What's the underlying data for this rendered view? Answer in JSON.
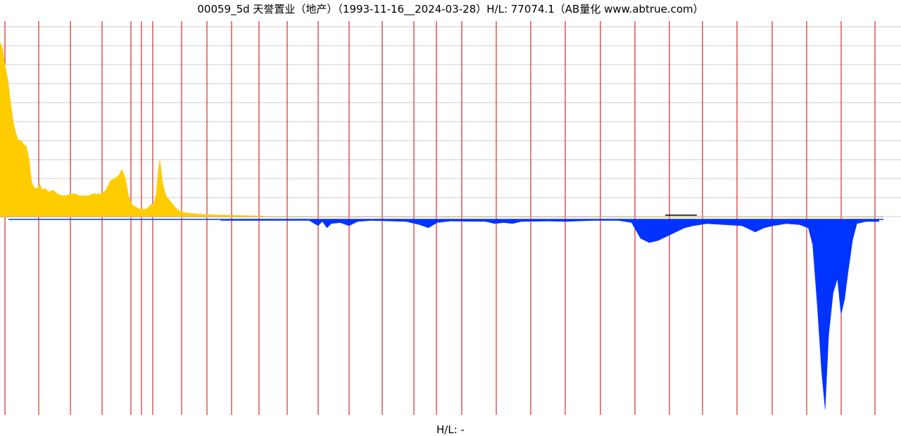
{
  "title": "00059_5d 天誉置业（地产）（1993-11-16__2024-03-28）H/L: 77074.1（AB量化  www.abtrue.com）",
  "bottom_label": "H/L: -",
  "colors": {
    "positive_fill": "#ffcc00",
    "negative_fill": "#0033ff",
    "vertical_lines": "#cc0000",
    "grid": "#cccccc",
    "baseline": "#c8b48c",
    "marker": "#000000"
  },
  "chart_data": {
    "type": "area",
    "title": "",
    "xlabel": "",
    "ylabel": "",
    "x_domain": [
      "1993-11-16",
      "2024-03-28"
    ],
    "ylim_upper": [
      0,
      100
    ],
    "ylim_lower": [
      -100,
      0
    ],
    "grid": true,
    "upper_grid_count": 10,
    "vertical_marker_count": 26,
    "series": [
      {
        "values": [
          [
            0.0,
            92
          ],
          [
            0.3,
            88
          ],
          [
            0.6,
            79
          ],
          [
            0.9,
            72
          ],
          [
            1.2,
            60
          ],
          [
            1.5,
            50
          ],
          [
            1.8,
            44
          ],
          [
            2.1,
            40
          ],
          [
            2.4,
            40
          ],
          [
            2.7,
            38
          ],
          [
            3.0,
            37
          ],
          [
            3.3,
            30
          ],
          [
            3.6,
            18
          ],
          [
            3.9,
            15
          ],
          [
            4.2,
            15
          ],
          [
            4.5,
            17
          ],
          [
            4.8,
            14
          ],
          [
            5.1,
            15
          ],
          [
            5.5,
            13
          ],
          [
            6.0,
            14
          ],
          [
            6.5,
            12
          ],
          [
            7.0,
            11
          ],
          [
            7.5,
            11
          ],
          [
            8.0,
            12
          ],
          [
            8.5,
            12
          ],
          [
            9.0,
            11
          ],
          [
            9.5,
            11
          ],
          [
            10.0,
            11
          ],
          [
            10.5,
            12
          ],
          [
            11.0,
            12
          ],
          [
            11.5,
            12
          ],
          [
            12.0,
            14
          ],
          [
            12.5,
            19
          ],
          [
            13.0,
            20
          ],
          [
            13.5,
            22
          ],
          [
            13.8,
            25
          ],
          [
            14.2,
            20
          ],
          [
            14.6,
            10
          ],
          [
            15.0,
            6
          ],
          [
            15.4,
            5
          ],
          [
            15.8,
            4
          ],
          [
            16.2,
            4
          ],
          [
            16.6,
            4
          ],
          [
            17.0,
            6
          ],
          [
            17.4,
            7
          ],
          [
            17.7,
            12
          ],
          [
            17.9,
            24
          ],
          [
            18.1,
            30
          ],
          [
            18.4,
            18
          ],
          [
            18.8,
            11
          ],
          [
            19.3,
            8
          ],
          [
            19.8,
            5
          ],
          [
            20.3,
            3
          ],
          [
            21.0,
            2
          ],
          [
            22.0,
            1.5
          ],
          [
            23.0,
            1.2
          ],
          [
            24.0,
            1
          ],
          [
            25.0,
            0.8
          ],
          [
            30.0,
            0.3
          ]
        ]
      },
      {
        "values": [
          [
            25.0,
            -0.5
          ],
          [
            30.0,
            -0.5
          ],
          [
            35.0,
            -0.5
          ],
          [
            36.0,
            -3
          ],
          [
            36.5,
            -1
          ],
          [
            37.0,
            -4
          ],
          [
            37.5,
            -2
          ],
          [
            38.5,
            -1.5
          ],
          [
            39.5,
            -3
          ],
          [
            40.5,
            -1
          ],
          [
            42.0,
            -0.5
          ],
          [
            46.0,
            -1
          ],
          [
            47.5,
            -2.5
          ],
          [
            48.5,
            -4
          ],
          [
            49.5,
            -1.5
          ],
          [
            51.0,
            -0.8
          ],
          [
            55.0,
            -1
          ],
          [
            56.0,
            -2
          ],
          [
            57.0,
            -1.5
          ],
          [
            58.0,
            -2
          ],
          [
            59.0,
            -1
          ],
          [
            62.0,
            -0.8
          ],
          [
            64.0,
            -1
          ],
          [
            67.0,
            -0.5
          ],
          [
            70.0,
            -0.5
          ],
          [
            71.5,
            -1.5
          ],
          [
            72.5,
            -9
          ],
          [
            73.5,
            -11
          ],
          [
            74.5,
            -10
          ],
          [
            75.5,
            -8
          ],
          [
            76.5,
            -6
          ],
          [
            77.5,
            -4
          ],
          [
            78.5,
            -3
          ],
          [
            80.0,
            -2
          ],
          [
            82.0,
            -2.5
          ],
          [
            84.0,
            -3
          ],
          [
            85.5,
            -6
          ],
          [
            86.5,
            -4
          ],
          [
            87.5,
            -3
          ],
          [
            89.0,
            -2
          ],
          [
            90.5,
            -2.5
          ],
          [
            91.5,
            -4
          ],
          [
            92.0,
            -12
          ],
          [
            92.5,
            -40
          ],
          [
            93.0,
            -72
          ],
          [
            93.4,
            -90
          ],
          [
            93.8,
            -55
          ],
          [
            94.3,
            -35
          ],
          [
            94.8,
            -28
          ],
          [
            95.2,
            -45
          ],
          [
            95.6,
            -38
          ],
          [
            96.0,
            -25
          ],
          [
            96.5,
            -10
          ],
          [
            97.0,
            -2
          ],
          [
            98.0,
            -1
          ],
          [
            99.5,
            -1
          ]
        ]
      }
    ]
  }
}
